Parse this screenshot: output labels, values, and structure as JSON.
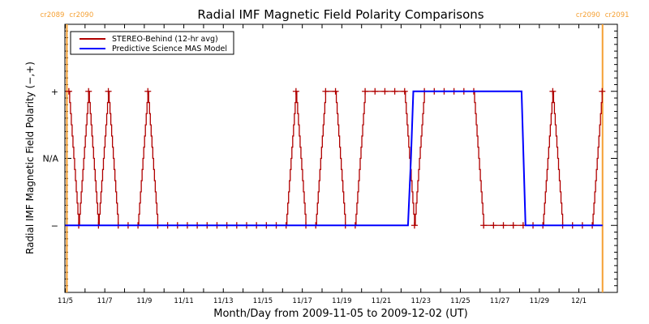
{
  "chart_data": {
    "type": "line",
    "title": "Radial IMF Magnetic Field Polarity Comparisons",
    "xlabel": "Month/Day from 2009-11-05 to 2009-12-02 (UT)",
    "ylabel": "Radial IMF Magnetic Field Polarity (−,+)",
    "x_unit": "days since 2009-11-05 00:00 UT",
    "xlim": [
      -0.02,
      27.95
    ],
    "ylim": [
      -2,
      2
    ],
    "x_ticks": [
      {
        "value": 0,
        "label": "11/5"
      },
      {
        "value": 2,
        "label": "11/7"
      },
      {
        "value": 4,
        "label": "11/9"
      },
      {
        "value": 6,
        "label": "11/11"
      },
      {
        "value": 8,
        "label": "11/13"
      },
      {
        "value": 10,
        "label": "11/15"
      },
      {
        "value": 12,
        "label": "11/17"
      },
      {
        "value": 14,
        "label": "11/19"
      },
      {
        "value": 16,
        "label": "11/21"
      },
      {
        "value": 18,
        "label": "11/23"
      },
      {
        "value": 20,
        "label": "11/25"
      },
      {
        "value": 22,
        "label": "11/27"
      },
      {
        "value": 24,
        "label": "11/29"
      },
      {
        "value": 26,
        "label": "12/1"
      }
    ],
    "y_ticks": [
      {
        "value": 1,
        "label": "+"
      },
      {
        "value": 0,
        "label": "N/A"
      },
      {
        "value": -1,
        "label": "−"
      }
    ],
    "series": [
      {
        "name": "STEREO-Behind (12-hr avg)",
        "color": "#b00000",
        "marker": "plus",
        "x_start": 0.18,
        "x_step": 0.5,
        "values": [
          1,
          -1,
          1,
          -1,
          1,
          -1,
          -1,
          -1,
          1,
          -1,
          -1,
          -1,
          -1,
          -1,
          -1,
          -1,
          -1,
          -1,
          -1,
          -1,
          -1,
          -1,
          -1,
          1,
          -1,
          -1,
          1,
          1,
          -1,
          -1,
          1,
          1,
          1,
          1,
          1,
          -1,
          1,
          1,
          1,
          1,
          1,
          1,
          -1,
          -1,
          -1,
          -1,
          -1,
          -1,
          -1,
          1,
          -1,
          -1,
          -1,
          -1,
          1
        ]
      },
      {
        "name": "Predictive Science MAS Model",
        "color": "#0000ff",
        "points": [
          [
            0.0,
            -1
          ],
          [
            17.35,
            -1
          ],
          [
            17.5,
            0
          ],
          [
            17.62,
            1
          ],
          [
            23.1,
            1
          ],
          [
            23.2,
            0
          ],
          [
            23.3,
            -1
          ],
          [
            27.2,
            -1
          ]
        ]
      }
    ],
    "vertical_lines": [
      {
        "x": 0.08,
        "color": "#f5a033",
        "label_left": "cr2089",
        "label_right": "cr2090"
      },
      {
        "x": 27.2,
        "color": "#f5a033",
        "label_left": "cr2090",
        "label_right": "cr2091"
      }
    ],
    "legend": {
      "placement": "top-left",
      "entries": [
        "STEREO-Behind (12-hr avg)",
        "Predictive Science MAS Model"
      ]
    },
    "grid": false
  }
}
